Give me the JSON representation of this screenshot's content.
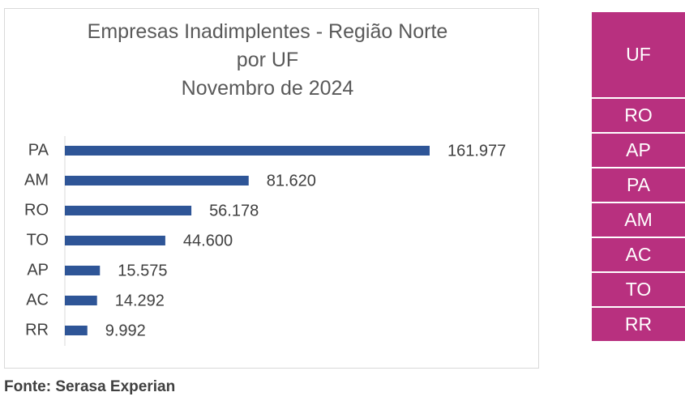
{
  "chart_data": {
    "type": "bar",
    "orientation": "horizontal",
    "title": "Empresas Inadimplentes - Região Norte por UF",
    "subtitle": "Novembro de 2024",
    "categories": [
      "PA",
      "AM",
      "RO",
      "TO",
      "AP",
      "AC",
      "RR"
    ],
    "values": [
      161977,
      81620,
      56178,
      44600,
      15575,
      14292,
      9992
    ],
    "value_labels": [
      "161.977",
      "81.620",
      "56.178",
      "44.600",
      "15.575",
      "14.292",
      "9.992"
    ],
    "color": "#2e5597"
  },
  "source": "Fonte: Serasa Experian",
  "table": {
    "header": "UF",
    "rows": [
      "RO",
      "AP",
      "PA",
      "AM",
      "AC",
      "TO",
      "RR"
    ]
  }
}
